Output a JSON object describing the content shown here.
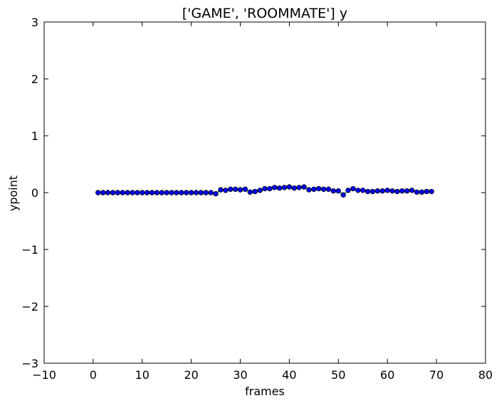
{
  "chart_data": {
    "type": "scatter",
    "title": "['GAME', 'ROOMMATE'] y",
    "xlabel": "frames",
    "ylabel": "ypoint",
    "xlim": [
      -10,
      80
    ],
    "ylim": [
      -3,
      3
    ],
    "xticks": [
      -10,
      0,
      10,
      20,
      30,
      40,
      50,
      60,
      70,
      80
    ],
    "yticks": [
      -3,
      -2,
      -1,
      0,
      1,
      2,
      3
    ],
    "xtick_labels": [
      "−10",
      "0",
      "10",
      "20",
      "30",
      "40",
      "50",
      "60",
      "70",
      "80"
    ],
    "ytick_labels": [
      "−3",
      "−2",
      "−1",
      "0",
      "1",
      "2",
      "3"
    ],
    "grid": false,
    "line_color": "#008000",
    "marker_fill": "#0000ff",
    "marker_edge": "#000000",
    "series": [
      {
        "x": [
          1,
          2,
          3,
          4,
          5,
          6,
          7,
          8,
          9,
          10,
          11,
          12,
          13,
          14,
          15,
          16,
          17,
          18,
          19,
          20,
          21,
          22,
          23,
          24,
          25,
          26,
          27,
          28,
          29,
          30,
          31,
          32,
          33,
          34,
          35,
          36,
          37,
          38,
          39,
          40,
          41,
          42,
          43,
          44,
          45,
          46,
          47,
          48,
          49,
          50,
          51,
          52,
          53,
          54,
          55,
          56,
          57,
          58,
          59,
          60,
          61,
          62,
          63,
          64,
          65,
          66,
          67,
          68,
          69
        ],
        "y": [
          0,
          0,
          0,
          0,
          0,
          0,
          0,
          0,
          0,
          0,
          0,
          0,
          0,
          0,
          0,
          0,
          0,
          0,
          0,
          0,
          0,
          0,
          0,
          0,
          -0.02,
          0.05,
          0.04,
          0.06,
          0.06,
          0.05,
          0.06,
          0.01,
          0.02,
          0.04,
          0.07,
          0.07,
          0.09,
          0.08,
          0.09,
          0.1,
          0.08,
          0.09,
          0.1,
          0.05,
          0.06,
          0.07,
          0.06,
          0.06,
          0.03,
          0.03,
          -0.04,
          0.04,
          0.07,
          0.04,
          0.04,
          0.02,
          0.02,
          0.03,
          0.03,
          0.04,
          0.03,
          0.02,
          0.03,
          0.03,
          0.04,
          0.01,
          0.01,
          0.02,
          0.02
        ]
      }
    ]
  }
}
